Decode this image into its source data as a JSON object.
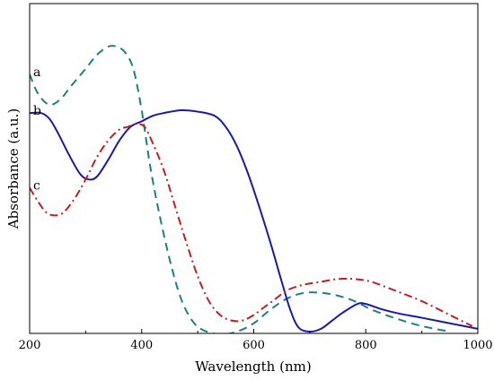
{
  "chart_data": {
    "type": "line",
    "title": "",
    "xlabel": "Wavelength (nm)",
    "ylabel": "Absorbance (a.u.)",
    "xlim": [
      200,
      1000
    ],
    "ylim": [
      0,
      1
    ],
    "x_ticks": [
      200,
      400,
      600,
      800,
      1000
    ],
    "x_tick_labels": [
      "200",
      "400",
      "600",
      "800",
      "1000"
    ],
    "y_ticks_labeled": false,
    "grid": false,
    "legend": "none",
    "series": [
      {
        "name": "a",
        "style": "dashed",
        "color": "#1f7f7f",
        "points": [
          [
            200,
            0.93
          ],
          [
            215,
            0.86
          ],
          [
            235,
            0.82
          ],
          [
            255,
            0.84
          ],
          [
            275,
            0.89
          ],
          [
            300,
            0.95
          ],
          [
            320,
            1.0
          ],
          [
            340,
            1.03
          ],
          [
            355,
            1.03
          ],
          [
            370,
            1.01
          ],
          [
            385,
            0.95
          ],
          [
            400,
            0.8
          ],
          [
            415,
            0.6
          ],
          [
            430,
            0.44
          ],
          [
            450,
            0.26
          ],
          [
            470,
            0.12
          ],
          [
            490,
            0.04
          ],
          [
            510,
            0.005
          ],
          [
            540,
            -0.01
          ],
          [
            570,
            0.0
          ],
          [
            600,
            0.03
          ],
          [
            630,
            0.08
          ],
          [
            660,
            0.12
          ],
          [
            690,
            0.14
          ],
          [
            720,
            0.14
          ],
          [
            750,
            0.13
          ],
          [
            780,
            0.11
          ],
          [
            810,
            0.08
          ],
          [
            850,
            0.05
          ],
          [
            900,
            0.02
          ],
          [
            950,
            0.0
          ]
        ]
      },
      {
        "name": "b",
        "style": "solid",
        "color": "#1a1aaa",
        "points": [
          [
            200,
            0.79
          ],
          [
            220,
            0.79
          ],
          [
            235,
            0.77
          ],
          [
            250,
            0.72
          ],
          [
            270,
            0.64
          ],
          [
            290,
            0.57
          ],
          [
            305,
            0.55
          ],
          [
            320,
            0.56
          ],
          [
            340,
            0.62
          ],
          [
            360,
            0.69
          ],
          [
            380,
            0.74
          ],
          [
            400,
            0.76
          ],
          [
            420,
            0.78
          ],
          [
            440,
            0.79
          ],
          [
            470,
            0.8
          ],
          [
            500,
            0.795
          ],
          [
            530,
            0.78
          ],
          [
            550,
            0.74
          ],
          [
            570,
            0.67
          ],
          [
            590,
            0.57
          ],
          [
            610,
            0.45
          ],
          [
            630,
            0.32
          ],
          [
            650,
            0.18
          ],
          [
            665,
            0.08
          ],
          [
            680,
            0.015
          ],
          [
            700,
            0.0
          ],
          [
            720,
            0.01
          ],
          [
            740,
            0.04
          ],
          [
            760,
            0.07
          ],
          [
            785,
            0.1
          ],
          [
            800,
            0.1
          ],
          [
            830,
            0.08
          ],
          [
            860,
            0.065
          ],
          [
            900,
            0.05
          ],
          [
            950,
            0.03
          ],
          [
            1000,
            0.01
          ]
        ]
      },
      {
        "name": "c",
        "style": "dash-dot",
        "color": "#c02020",
        "points": [
          [
            200,
            0.52
          ],
          [
            215,
            0.47
          ],
          [
            230,
            0.43
          ],
          [
            245,
            0.42
          ],
          [
            260,
            0.43
          ],
          [
            280,
            0.48
          ],
          [
            300,
            0.55
          ],
          [
            320,
            0.63
          ],
          [
            340,
            0.69
          ],
          [
            360,
            0.73
          ],
          [
            375,
            0.74
          ],
          [
            390,
            0.75
          ],
          [
            405,
            0.74
          ],
          [
            420,
            0.68
          ],
          [
            440,
            0.58
          ],
          [
            460,
            0.45
          ],
          [
            480,
            0.32
          ],
          [
            500,
            0.2
          ],
          [
            520,
            0.11
          ],
          [
            540,
            0.06
          ],
          [
            560,
            0.04
          ],
          [
            580,
            0.04
          ],
          [
            600,
            0.06
          ],
          [
            620,
            0.09
          ],
          [
            640,
            0.12
          ],
          [
            660,
            0.15
          ],
          [
            690,
            0.17
          ],
          [
            720,
            0.18
          ],
          [
            750,
            0.19
          ],
          [
            780,
            0.19
          ],
          [
            810,
            0.18
          ],
          [
            850,
            0.15
          ],
          [
            900,
            0.11
          ],
          [
            950,
            0.06
          ],
          [
            990,
            0.02
          ]
        ]
      }
    ]
  }
}
